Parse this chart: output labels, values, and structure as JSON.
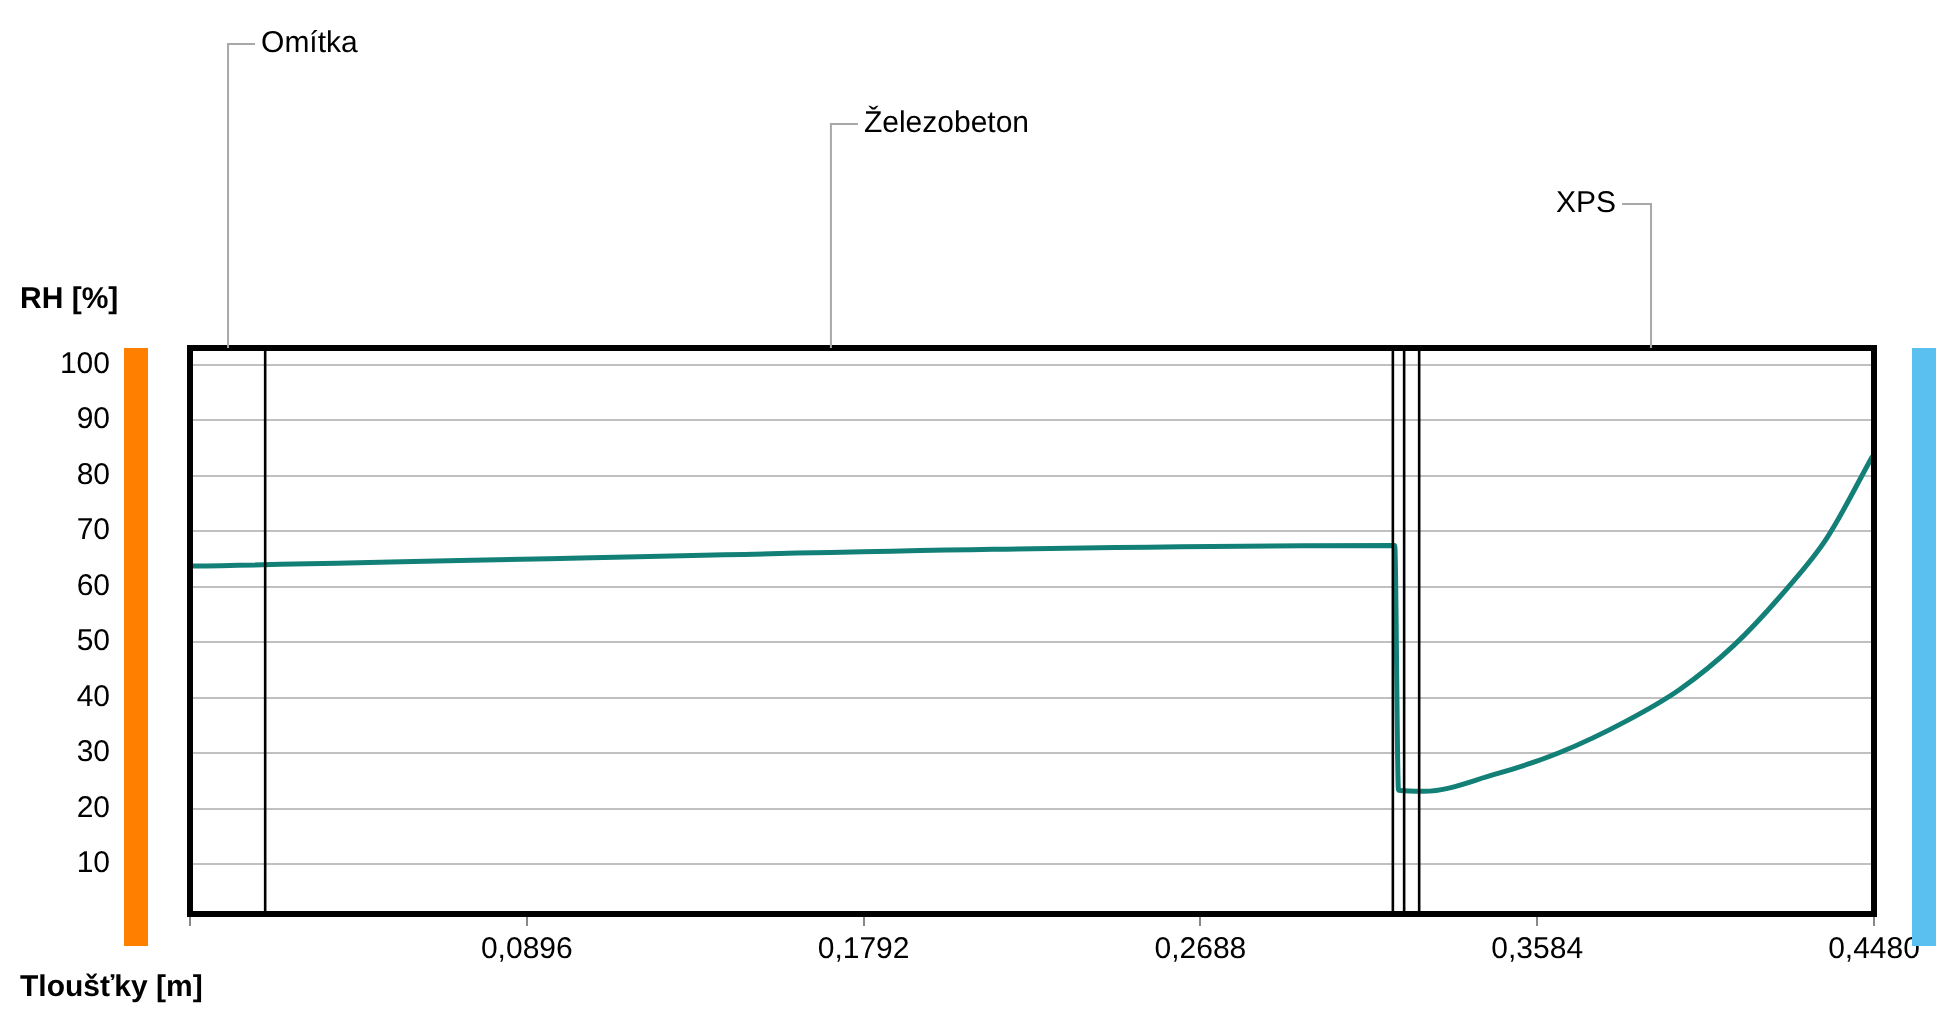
{
  "chart_data": {
    "type": "line",
    "xlabel": "Tloušťky [m]",
    "ylabel": "RH [%]",
    "xlim": [
      0,
      0.448
    ],
    "ylim": [
      1,
      103
    ],
    "xticks": [
      {
        "value": 0,
        "label": null
      },
      {
        "value": 0.0896,
        "label": "0,0896"
      },
      {
        "value": 0.1792,
        "label": "0,1792"
      },
      {
        "value": 0.2688,
        "label": "0,2688"
      },
      {
        "value": 0.3584,
        "label": "0,3584"
      },
      {
        "value": 0.448,
        "label": "0,4480"
      }
    ],
    "yticks": [
      10,
      20,
      30,
      40,
      50,
      60,
      70,
      80,
      90,
      100
    ],
    "grid": "y",
    "legend": false,
    "marker": "none",
    "line_style": "solid",
    "series": [
      {
        "color": "#138078",
        "x": [
          0,
          0.3205,
          0.3215,
          0.3282,
          0.3468,
          0.3644,
          0.3822,
          0.3964,
          0.4107,
          0.4249,
          0.4355,
          0.4476
        ],
        "values": [
          63.7,
          67.4,
          23.3,
          23.1,
          26.1,
          30.1,
          35.8,
          41.5,
          49.4,
          59.7,
          68.8,
          83.5
        ]
      }
    ],
    "ref_lines": [
      {
        "axis": "x",
        "value": 0.02,
        "color": "#000000"
      },
      {
        "axis": "x",
        "value": 0.32,
        "color": "#000000"
      },
      {
        "axis": "x",
        "value": 0.323,
        "color": "#000000"
      },
      {
        "axis": "x",
        "value": 0.327,
        "color": "#000000"
      }
    ],
    "annotations": [
      "Omítka",
      "Železobeton",
      "XPS"
    ]
  }
}
